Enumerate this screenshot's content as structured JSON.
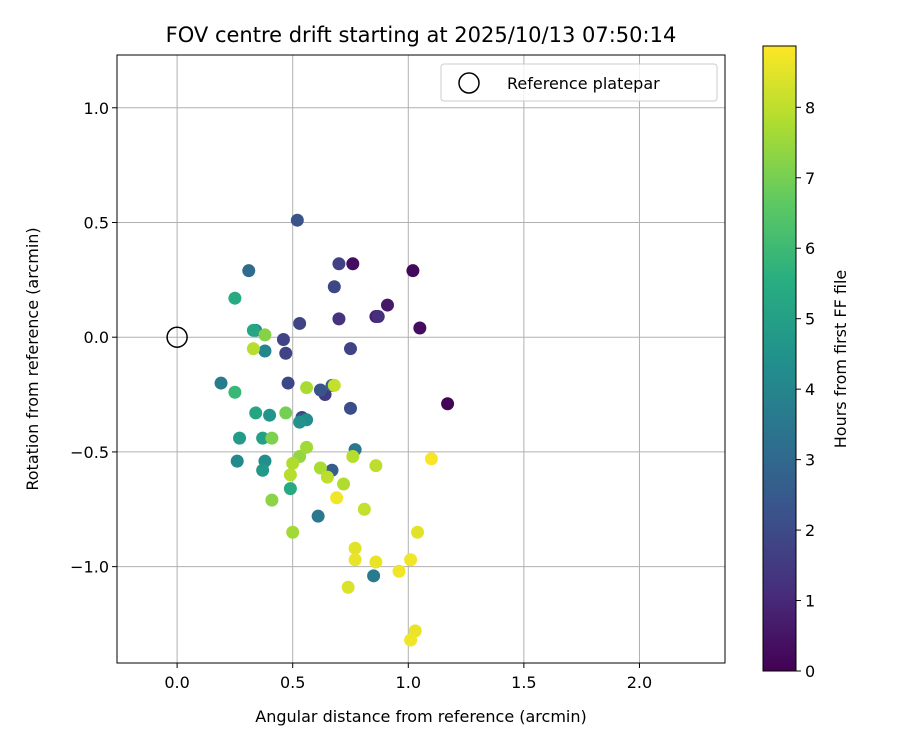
{
  "chart_data": {
    "type": "scatter",
    "title": "FOV centre drift starting at 2025/10/13 07:50:14",
    "xlabel": "Angular distance from reference (arcmin)",
    "ylabel": "Rotation from reference (arcmin)",
    "xlim": [
      -0.26,
      2.37
    ],
    "ylim": [
      -1.42,
      1.23
    ],
    "xticks": [
      0.0,
      0.5,
      1.0,
      1.5,
      2.0
    ],
    "xtick_labels": [
      "0.0",
      "0.5",
      "1.0",
      "1.5",
      "2.0"
    ],
    "yticks": [
      1.0,
      0.5,
      0.0,
      -0.5,
      -1.0
    ],
    "ytick_labels": [
      "1.0",
      "0.5",
      "0.0",
      "−0.5",
      "−1.0"
    ],
    "grid": true,
    "legend": {
      "label": "Reference platepar",
      "position": "upper right"
    },
    "reference_point": {
      "x": 0.0,
      "y": 0.0
    },
    "colorbar": {
      "label": "Hours from first FF file",
      "colormap": "viridis",
      "range": [
        0,
        8.87
      ],
      "ticks": [
        0,
        1,
        2,
        3,
        4,
        5,
        6,
        7,
        8
      ],
      "tick_labels": [
        "0",
        "1",
        "2",
        "3",
        "4",
        "5",
        "6",
        "7",
        "8"
      ]
    },
    "points": [
      {
        "x": 0.76,
        "y": 0.32,
        "c": 0.3
      },
      {
        "x": 1.02,
        "y": 0.29,
        "c": 0.2
      },
      {
        "x": 0.91,
        "y": 0.14,
        "c": 0.6
      },
      {
        "x": 1.05,
        "y": 0.04,
        "c": 0.3
      },
      {
        "x": 1.17,
        "y": -0.29,
        "c": 0.1
      },
      {
        "x": 0.86,
        "y": 0.09,
        "c": 0.8
      },
      {
        "x": 0.87,
        "y": 0.09,
        "c": 1.2
      },
      {
        "x": 0.7,
        "y": 0.08,
        "c": 1.3
      },
      {
        "x": 0.7,
        "y": 0.32,
        "c": 1.7
      },
      {
        "x": 0.68,
        "y": 0.22,
        "c": 1.9
      },
      {
        "x": 0.52,
        "y": 0.51,
        "c": 2.3
      },
      {
        "x": 0.53,
        "y": 0.06,
        "c": 1.8
      },
      {
        "x": 0.47,
        "y": -0.07,
        "c": 1.8
      },
      {
        "x": 0.46,
        "y": -0.01,
        "c": 1.8
      },
      {
        "x": 0.75,
        "y": -0.05,
        "c": 1.8
      },
      {
        "x": 0.48,
        "y": -0.2,
        "c": 1.9
      },
      {
        "x": 0.64,
        "y": -0.25,
        "c": 1.5
      },
      {
        "x": 0.62,
        "y": -0.23,
        "c": 2.3
      },
      {
        "x": 0.67,
        "y": -0.21,
        "c": 2.8
      },
      {
        "x": 0.75,
        "y": -0.31,
        "c": 2.1
      },
      {
        "x": 0.54,
        "y": -0.35,
        "c": 1.9
      },
      {
        "x": 0.54,
        "y": -0.36,
        "c": 2.3
      },
      {
        "x": 0.31,
        "y": 0.29,
        "c": 3.1
      },
      {
        "x": 0.67,
        "y": -0.58,
        "c": 2.6
      },
      {
        "x": 0.77,
        "y": -0.49,
        "c": 3.5
      },
      {
        "x": 0.61,
        "y": -0.78,
        "c": 3.5
      },
      {
        "x": 0.85,
        "y": -1.04,
        "c": 3.6
      },
      {
        "x": 0.19,
        "y": -0.2,
        "c": 3.7
      },
      {
        "x": 0.38,
        "y": -0.06,
        "c": 4.0
      },
      {
        "x": 0.56,
        "y": -0.36,
        "c": 4.3
      },
      {
        "x": 0.53,
        "y": -0.37,
        "c": 4.5
      },
      {
        "x": 0.34,
        "y": 0.03,
        "c": 4.3
      },
      {
        "x": 0.26,
        "y": -0.54,
        "c": 4.2
      },
      {
        "x": 0.4,
        "y": -0.34,
        "c": 4.6
      },
      {
        "x": 0.37,
        "y": -0.58,
        "c": 4.7
      },
      {
        "x": 0.38,
        "y": -0.54,
        "c": 4.4
      },
      {
        "x": 0.27,
        "y": -0.44,
        "c": 4.8
      },
      {
        "x": 0.37,
        "y": -0.44,
        "c": 5.0
      },
      {
        "x": 0.34,
        "y": -0.33,
        "c": 5.2
      },
      {
        "x": 0.49,
        "y": -0.66,
        "c": 5.4
      },
      {
        "x": 0.33,
        "y": 0.03,
        "c": 5.2
      },
      {
        "x": 0.25,
        "y": 0.17,
        "c": 5.4
      },
      {
        "x": 0.25,
        "y": -0.24,
        "c": 5.9
      },
      {
        "x": 0.38,
        "y": 0.01,
        "c": 7.2
      },
      {
        "x": 0.41,
        "y": -0.44,
        "c": 7.1
      },
      {
        "x": 0.47,
        "y": -0.33,
        "c": 7.0
      },
      {
        "x": 0.41,
        "y": -0.71,
        "c": 7.3
      },
      {
        "x": 0.33,
        "y": -0.05,
        "c": 7.9
      },
      {
        "x": 0.56,
        "y": -0.22,
        "c": 7.7
      },
      {
        "x": 0.68,
        "y": -0.21,
        "c": 8.1
      },
      {
        "x": 0.56,
        "y": -0.48,
        "c": 7.6
      },
      {
        "x": 0.53,
        "y": -0.52,
        "c": 7.4
      },
      {
        "x": 0.5,
        "y": -0.55,
        "c": 7.8
      },
      {
        "x": 0.49,
        "y": -0.6,
        "c": 7.9
      },
      {
        "x": 0.5,
        "y": -0.85,
        "c": 7.6
      },
      {
        "x": 0.62,
        "y": -0.57,
        "c": 7.7
      },
      {
        "x": 0.65,
        "y": -0.61,
        "c": 8.0
      },
      {
        "x": 0.72,
        "y": -0.64,
        "c": 7.8
      },
      {
        "x": 0.76,
        "y": -0.52,
        "c": 7.9
      },
      {
        "x": 0.86,
        "y": -0.56,
        "c": 8.0
      },
      {
        "x": 0.81,
        "y": -0.75,
        "c": 8.1
      },
      {
        "x": 0.69,
        "y": -0.7,
        "c": 8.7
      },
      {
        "x": 0.77,
        "y": -0.92,
        "c": 8.5
      },
      {
        "x": 0.77,
        "y": -0.97,
        "c": 8.6
      },
      {
        "x": 0.86,
        "y": -0.98,
        "c": 8.6
      },
      {
        "x": 0.96,
        "y": -1.02,
        "c": 8.7
      },
      {
        "x": 1.01,
        "y": -0.97,
        "c": 8.7
      },
      {
        "x": 1.04,
        "y": -0.85,
        "c": 8.5
      },
      {
        "x": 1.1,
        "y": -0.53,
        "c": 8.8
      },
      {
        "x": 0.74,
        "y": -1.09,
        "c": 8.4
      },
      {
        "x": 1.03,
        "y": -1.28,
        "c": 8.6
      },
      {
        "x": 1.01,
        "y": -1.32,
        "c": 8.7
      }
    ]
  }
}
